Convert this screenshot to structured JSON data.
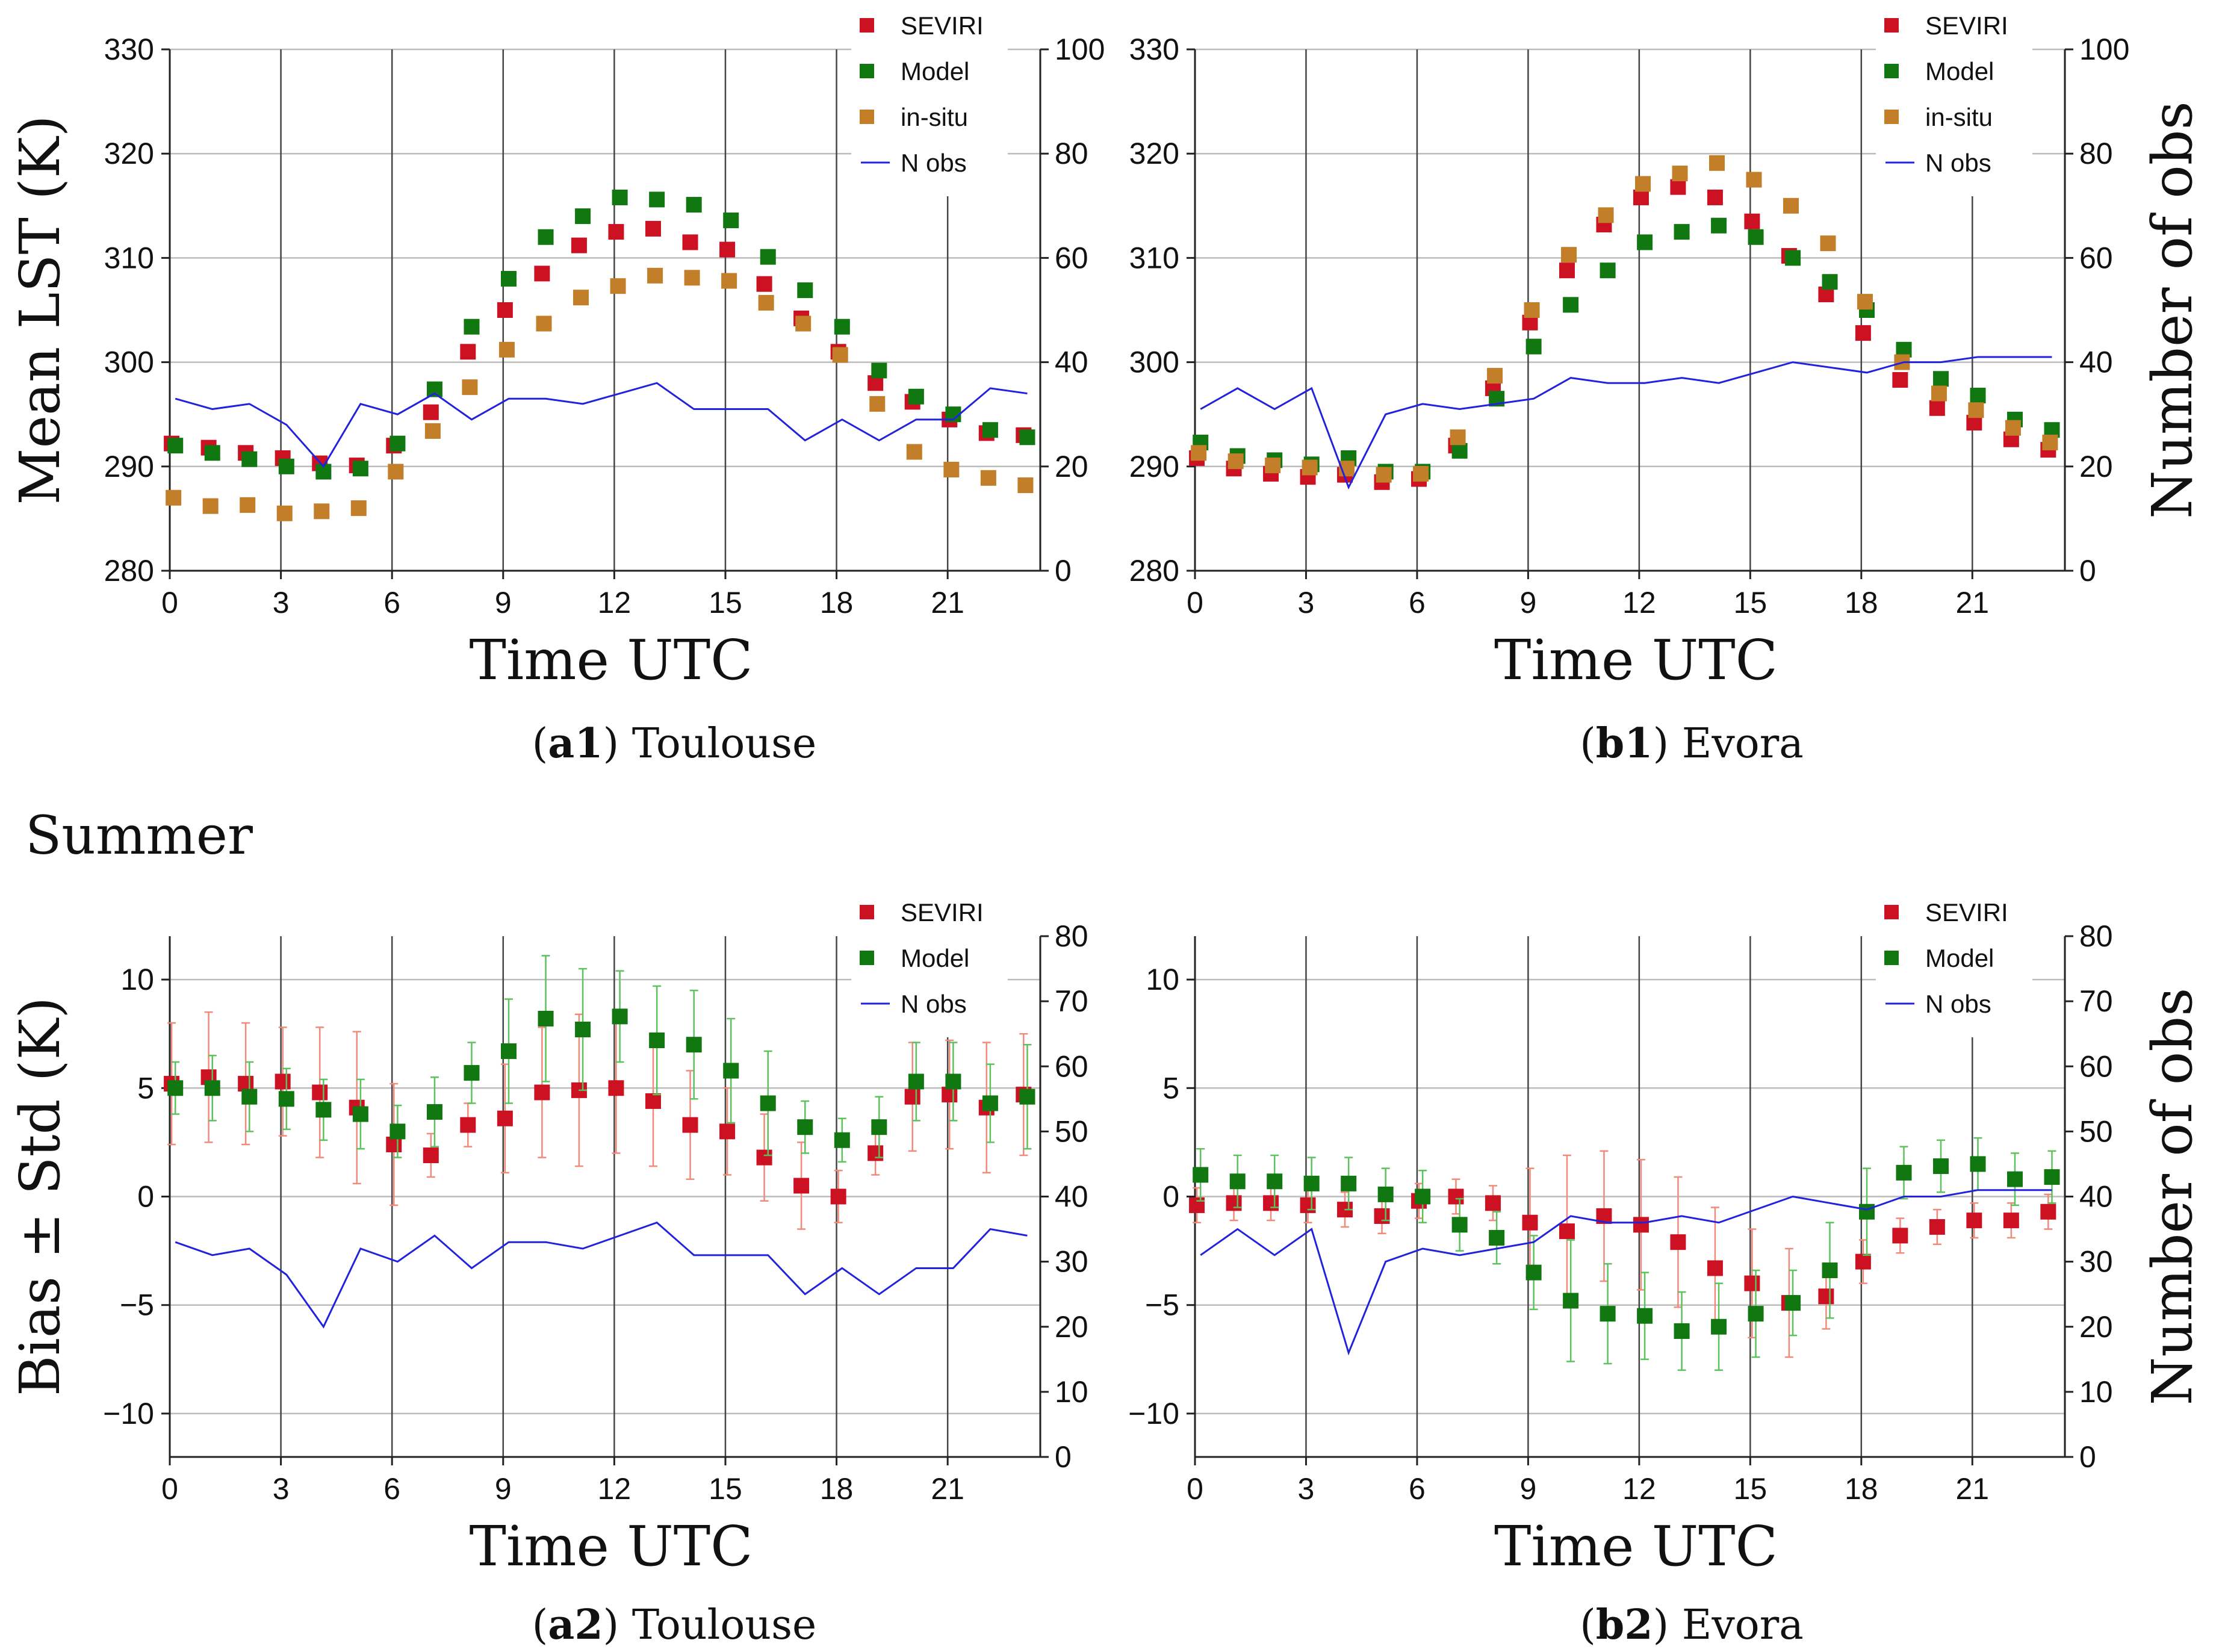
{
  "section_label": "Summer",
  "colors": {
    "seviri": "#cc1122",
    "model": "#117711",
    "insitu": "#c27e28",
    "nobs": "#2222dd",
    "seviri_err": "#f08a7a",
    "model_err": "#5cc25c"
  },
  "chart_data": [
    {
      "id": "a1",
      "type": "scatter",
      "caption_bold": "a1",
      "caption_text": "Toulouse",
      "xlabel": "Time UTC",
      "ylabel": "Mean LST (K)",
      "y2label": "",
      "xlim": [
        0,
        23.5
      ],
      "ylim": [
        280,
        330
      ],
      "y2lim": [
        0,
        100
      ],
      "xticks": [
        0,
        3,
        6,
        9,
        12,
        15,
        18,
        21
      ],
      "yticks": [
        280,
        290,
        300,
        310,
        320,
        330
      ],
      "y2ticks": [
        0,
        20,
        40,
        60,
        80,
        100
      ],
      "vgrid": [
        3,
        6,
        9,
        12,
        15,
        18,
        21
      ],
      "legend": [
        "SEVIRI",
        "Model",
        "in-situ",
        "N obs"
      ],
      "series": [
        {
          "name": "SEVIRI",
          "key": "seviri",
          "x": [
            0,
            1,
            2,
            3,
            4,
            5,
            6,
            7,
            8,
            9,
            10,
            11,
            12,
            13,
            14,
            15,
            16,
            17,
            18,
            19,
            20,
            21,
            22,
            23
          ],
          "values": [
            292.2,
            291.8,
            291.3,
            290.8,
            290.3,
            290.1,
            292.0,
            295.2,
            301.0,
            305.0,
            308.5,
            311.2,
            312.5,
            312.8,
            311.5,
            310.8,
            307.5,
            304.2,
            301.0,
            298.0,
            296.2,
            294.5,
            293.2,
            293.0
          ]
        },
        {
          "name": "Model",
          "key": "model",
          "x": [
            0,
            1,
            2,
            3,
            4,
            5,
            6,
            7,
            8,
            9,
            10,
            11,
            12,
            13,
            14,
            15,
            16,
            17,
            18,
            19,
            20,
            21,
            22,
            23
          ],
          "values": [
            292.0,
            291.3,
            290.7,
            290.0,
            289.5,
            289.8,
            292.2,
            297.4,
            303.4,
            308.0,
            312.0,
            314.0,
            315.8,
            315.6,
            315.1,
            313.6,
            310.1,
            306.9,
            303.4,
            299.2,
            296.7,
            295.0,
            293.5,
            292.8
          ]
        },
        {
          "name": "in-situ",
          "key": "insitu",
          "x": [
            0,
            1,
            2,
            3,
            4,
            5,
            6,
            7,
            8,
            9,
            10,
            11,
            12,
            13,
            14,
            15,
            16,
            17,
            18,
            19,
            20,
            21,
            22,
            23
          ],
          "values": [
            287.0,
            286.2,
            286.3,
            285.5,
            285.7,
            286.0,
            289.5,
            293.4,
            297.6,
            301.2,
            303.7,
            306.2,
            307.3,
            308.3,
            308.1,
            307.8,
            305.7,
            303.7,
            300.7,
            296.0,
            291.4,
            289.7,
            288.9,
            288.2
          ]
        },
        {
          "name": "N obs",
          "key": "nobs",
          "axis": "y2",
          "x": [
            0,
            1,
            2,
            3,
            4,
            5,
            6,
            7,
            8,
            9,
            10,
            11,
            12,
            13,
            14,
            15,
            16,
            17,
            18,
            19,
            20,
            21,
            22,
            23
          ],
          "values": [
            33,
            31,
            32,
            28,
            20,
            32,
            30,
            34,
            29,
            33,
            33,
            32,
            34,
            36,
            31,
            31,
            31,
            25,
            29,
            25,
            29,
            29,
            35,
            34
          ]
        }
      ]
    },
    {
      "id": "b1",
      "type": "scatter",
      "caption_bold": "b1",
      "caption_text": "Evora",
      "xlabel": "Time UTC",
      "ylabel": "",
      "y2label": "Number of obs",
      "xlim": [
        0,
        23.5
      ],
      "ylim": [
        280,
        330
      ],
      "y2lim": [
        0,
        100
      ],
      "xticks": [
        0,
        3,
        6,
        9,
        12,
        15,
        18,
        21
      ],
      "yticks": [
        280,
        290,
        300,
        310,
        320,
        330
      ],
      "y2ticks": [
        0,
        20,
        40,
        60,
        80,
        100
      ],
      "vgrid": [
        3,
        6,
        9,
        12,
        15,
        18,
        21
      ],
      "legend": [
        "SEVIRI",
        "Model",
        "in-situ",
        "N obs"
      ],
      "series": [
        {
          "name": "SEVIRI",
          "key": "seviri",
          "x": [
            0,
            1,
            2,
            3,
            4,
            5,
            6,
            7,
            8,
            9,
            10,
            11,
            12,
            13,
            14,
            15,
            16,
            17,
            18,
            19,
            20,
            21,
            22,
            23
          ],
          "values": [
            290.8,
            289.8,
            289.3,
            289.0,
            289.2,
            288.5,
            288.8,
            292.0,
            297.5,
            303.8,
            308.8,
            313.2,
            315.8,
            316.8,
            315.8,
            313.5,
            310.2,
            306.5,
            302.8,
            298.3,
            295.6,
            294.2,
            292.6,
            291.6
          ]
        },
        {
          "name": "Model",
          "key": "model",
          "x": [
            0,
            1,
            2,
            3,
            4,
            5,
            6,
            7,
            8,
            9,
            10,
            11,
            12,
            13,
            14,
            15,
            16,
            17,
            18,
            19,
            20,
            21,
            22,
            23
          ],
          "values": [
            292.3,
            291.0,
            290.6,
            290.2,
            290.8,
            289.5,
            289.5,
            291.5,
            296.5,
            301.5,
            305.5,
            308.8,
            311.5,
            312.5,
            313.1,
            312.0,
            310.0,
            307.7,
            305.0,
            301.2,
            298.4,
            296.8,
            294.5,
            293.5
          ]
        },
        {
          "name": "in-situ",
          "key": "insitu",
          "x": [
            0,
            1,
            2,
            3,
            4,
            5,
            6,
            7,
            8,
            9,
            10,
            11,
            12,
            13,
            14,
            15,
            16,
            17,
            18,
            19,
            20,
            21,
            22,
            23
          ],
          "values": [
            291.3,
            290.5,
            290.1,
            289.9,
            289.8,
            289.2,
            289.3,
            292.8,
            298.7,
            305.0,
            310.3,
            314.1,
            317.1,
            318.1,
            319.1,
            317.5,
            315.0,
            311.4,
            305.8,
            300.0,
            297.0,
            295.4,
            293.7,
            292.3
          ]
        },
        {
          "name": "N obs",
          "key": "nobs",
          "axis": "y2",
          "x": [
            0,
            1,
            2,
            3,
            4,
            5,
            6,
            7,
            8,
            9,
            10,
            11,
            12,
            13,
            14,
            15,
            16,
            17,
            18,
            19,
            20,
            21,
            22,
            23
          ],
          "values": [
            31,
            35,
            31,
            35,
            16,
            30,
            32,
            31,
            32,
            33,
            37,
            36,
            36,
            37,
            36,
            38,
            40,
            39,
            38,
            40,
            40,
            41,
            41,
            41
          ]
        }
      ]
    },
    {
      "id": "a2",
      "type": "scatter",
      "caption_bold": "a2",
      "caption_text": "Toulouse",
      "xlabel": "Time UTC",
      "ylabel": "Bias ± Std (K)",
      "y2label": "",
      "xlim": [
        0,
        23.5
      ],
      "ylim": [
        -12,
        12
      ],
      "y2lim": [
        0,
        80
      ],
      "xticks": [
        0,
        3,
        6,
        9,
        12,
        15,
        18,
        21
      ],
      "yticks": [
        -10,
        -5,
        0,
        5,
        10
      ],
      "y2ticks": [
        0,
        10,
        20,
        30,
        40,
        50,
        60,
        70,
        80
      ],
      "vgrid": [
        3,
        6,
        9,
        12,
        15,
        18,
        21
      ],
      "legend": [
        "SEVIRI",
        "Model",
        "N obs"
      ],
      "series": [
        {
          "name": "SEVIRI",
          "key": "seviri",
          "x": [
            0,
            1,
            2,
            3,
            4,
            5,
            6,
            7,
            8,
            9,
            10,
            11,
            12,
            13,
            14,
            15,
            16,
            17,
            18,
            19,
            20,
            21,
            22,
            23
          ],
          "values": [
            5.2,
            5.5,
            5.2,
            5.3,
            4.8,
            4.1,
            2.4,
            1.9,
            3.3,
            3.6,
            4.8,
            4.9,
            5.0,
            4.4,
            3.3,
            3.0,
            1.8,
            0.5,
            0.0,
            2.0,
            4.6,
            4.7,
            4.1,
            4.7
          ],
          "std": [
            2.8,
            3.0,
            2.8,
            2.5,
            3.0,
            3.5,
            2.8,
            1.0,
            1.0,
            2.5,
            3.0,
            3.5,
            3.0,
            3.0,
            2.5,
            2.0,
            2.0,
            2.0,
            1.2,
            1.0,
            2.5,
            2.5,
            3.0,
            2.8
          ]
        },
        {
          "name": "Model",
          "key": "model",
          "x": [
            0,
            1,
            2,
            3,
            4,
            5,
            6,
            7,
            8,
            9,
            10,
            11,
            12,
            13,
            14,
            15,
            16,
            17,
            18,
            19,
            20,
            21,
            22,
            23
          ],
          "values": [
            5.0,
            5.0,
            4.6,
            4.5,
            4.0,
            3.8,
            3.0,
            3.9,
            5.7,
            6.7,
            8.2,
            7.7,
            8.3,
            7.2,
            7.0,
            5.8,
            4.3,
            3.2,
            2.6,
            3.2,
            5.3,
            5.3,
            4.3,
            4.6
          ],
          "std": [
            1.2,
            1.5,
            1.6,
            1.4,
            1.4,
            1.6,
            1.2,
            1.6,
            1.4,
            2.4,
            2.9,
            2.8,
            2.1,
            2.5,
            2.5,
            2.4,
            2.4,
            1.2,
            1.0,
            1.4,
            1.8,
            1.8,
            1.8,
            2.4
          ]
        },
        {
          "name": "N obs",
          "key": "nobs",
          "axis": "y2",
          "x": [
            0,
            1,
            2,
            3,
            4,
            5,
            6,
            7,
            8,
            9,
            10,
            11,
            12,
            13,
            14,
            15,
            16,
            17,
            18,
            19,
            20,
            21,
            22,
            23
          ],
          "values": [
            33,
            31,
            32,
            28,
            20,
            32,
            30,
            34,
            29,
            33,
            33,
            32,
            34,
            36,
            31,
            31,
            31,
            25,
            29,
            25,
            29,
            29,
            35,
            34
          ]
        }
      ]
    },
    {
      "id": "b2",
      "type": "scatter",
      "caption_bold": "b2",
      "caption_text": "Evora",
      "xlabel": "Time UTC",
      "ylabel": "",
      "y2label": "Number of obs",
      "xlim": [
        0,
        23.5
      ],
      "ylim": [
        -12,
        12
      ],
      "y2lim": [
        0,
        80
      ],
      "xticks": [
        0,
        3,
        6,
        9,
        12,
        15,
        18,
        21
      ],
      "yticks": [
        -10,
        -5,
        0,
        5,
        10
      ],
      "y2ticks": [
        0,
        10,
        20,
        30,
        40,
        50,
        60,
        70,
        80
      ],
      "vgrid": [
        3,
        6,
        9,
        12,
        15,
        18,
        21
      ],
      "legend": [
        "SEVIRI",
        "Model",
        "N obs"
      ],
      "series": [
        {
          "name": "SEVIRI",
          "key": "seviri",
          "x": [
            0,
            1,
            2,
            3,
            4,
            5,
            6,
            7,
            8,
            9,
            10,
            11,
            12,
            13,
            14,
            15,
            16,
            17,
            18,
            19,
            20,
            21,
            22,
            23
          ],
          "values": [
            -0.4,
            -0.3,
            -0.3,
            -0.4,
            -0.6,
            -0.9,
            -0.2,
            0.0,
            -0.3,
            -1.2,
            -1.6,
            -0.9,
            -1.3,
            -2.1,
            -3.3,
            -4.0,
            -4.9,
            -4.6,
            -3.0,
            -1.8,
            -1.4,
            -1.1,
            -1.1,
            -0.7
          ],
          "std": [
            0.8,
            0.8,
            0.8,
            0.8,
            0.8,
            0.8,
            0.8,
            0.8,
            0.8,
            2.5,
            3.5,
            3.0,
            3.0,
            3.0,
            2.8,
            2.5,
            2.5,
            1.5,
            1.0,
            0.8,
            0.8,
            0.8,
            0.8,
            0.8
          ]
        },
        {
          "name": "Model",
          "key": "model",
          "x": [
            0,
            1,
            2,
            3,
            4,
            5,
            6,
            7,
            8,
            9,
            10,
            11,
            12,
            13,
            14,
            15,
            16,
            17,
            18,
            19,
            20,
            21,
            22,
            23
          ],
          "values": [
            1.0,
            0.7,
            0.7,
            0.6,
            0.6,
            0.1,
            0.0,
            -1.3,
            -1.9,
            -3.5,
            -4.8,
            -5.4,
            -5.5,
            -6.2,
            -6.0,
            -5.4,
            -4.9,
            -3.4,
            -0.7,
            1.1,
            1.4,
            1.5,
            0.8,
            0.9
          ],
          "std": [
            1.2,
            1.2,
            1.2,
            1.2,
            1.2,
            1.2,
            1.2,
            1.2,
            1.2,
            1.7,
            2.8,
            2.3,
            2.0,
            1.8,
            2.0,
            2.0,
            1.5,
            2.2,
            2.0,
            1.2,
            1.2,
            1.2,
            1.2,
            1.2
          ]
        },
        {
          "name": "N obs",
          "key": "nobs",
          "axis": "y2",
          "x": [
            0,
            1,
            2,
            3,
            4,
            5,
            6,
            7,
            8,
            9,
            10,
            11,
            12,
            13,
            14,
            15,
            16,
            17,
            18,
            19,
            20,
            21,
            22,
            23
          ],
          "values": [
            31,
            35,
            31,
            35,
            16,
            30,
            32,
            31,
            32,
            33,
            37,
            36,
            36,
            37,
            36,
            38,
            40,
            39,
            38,
            40,
            40,
            41,
            41,
            41
          ]
        }
      ]
    }
  ]
}
